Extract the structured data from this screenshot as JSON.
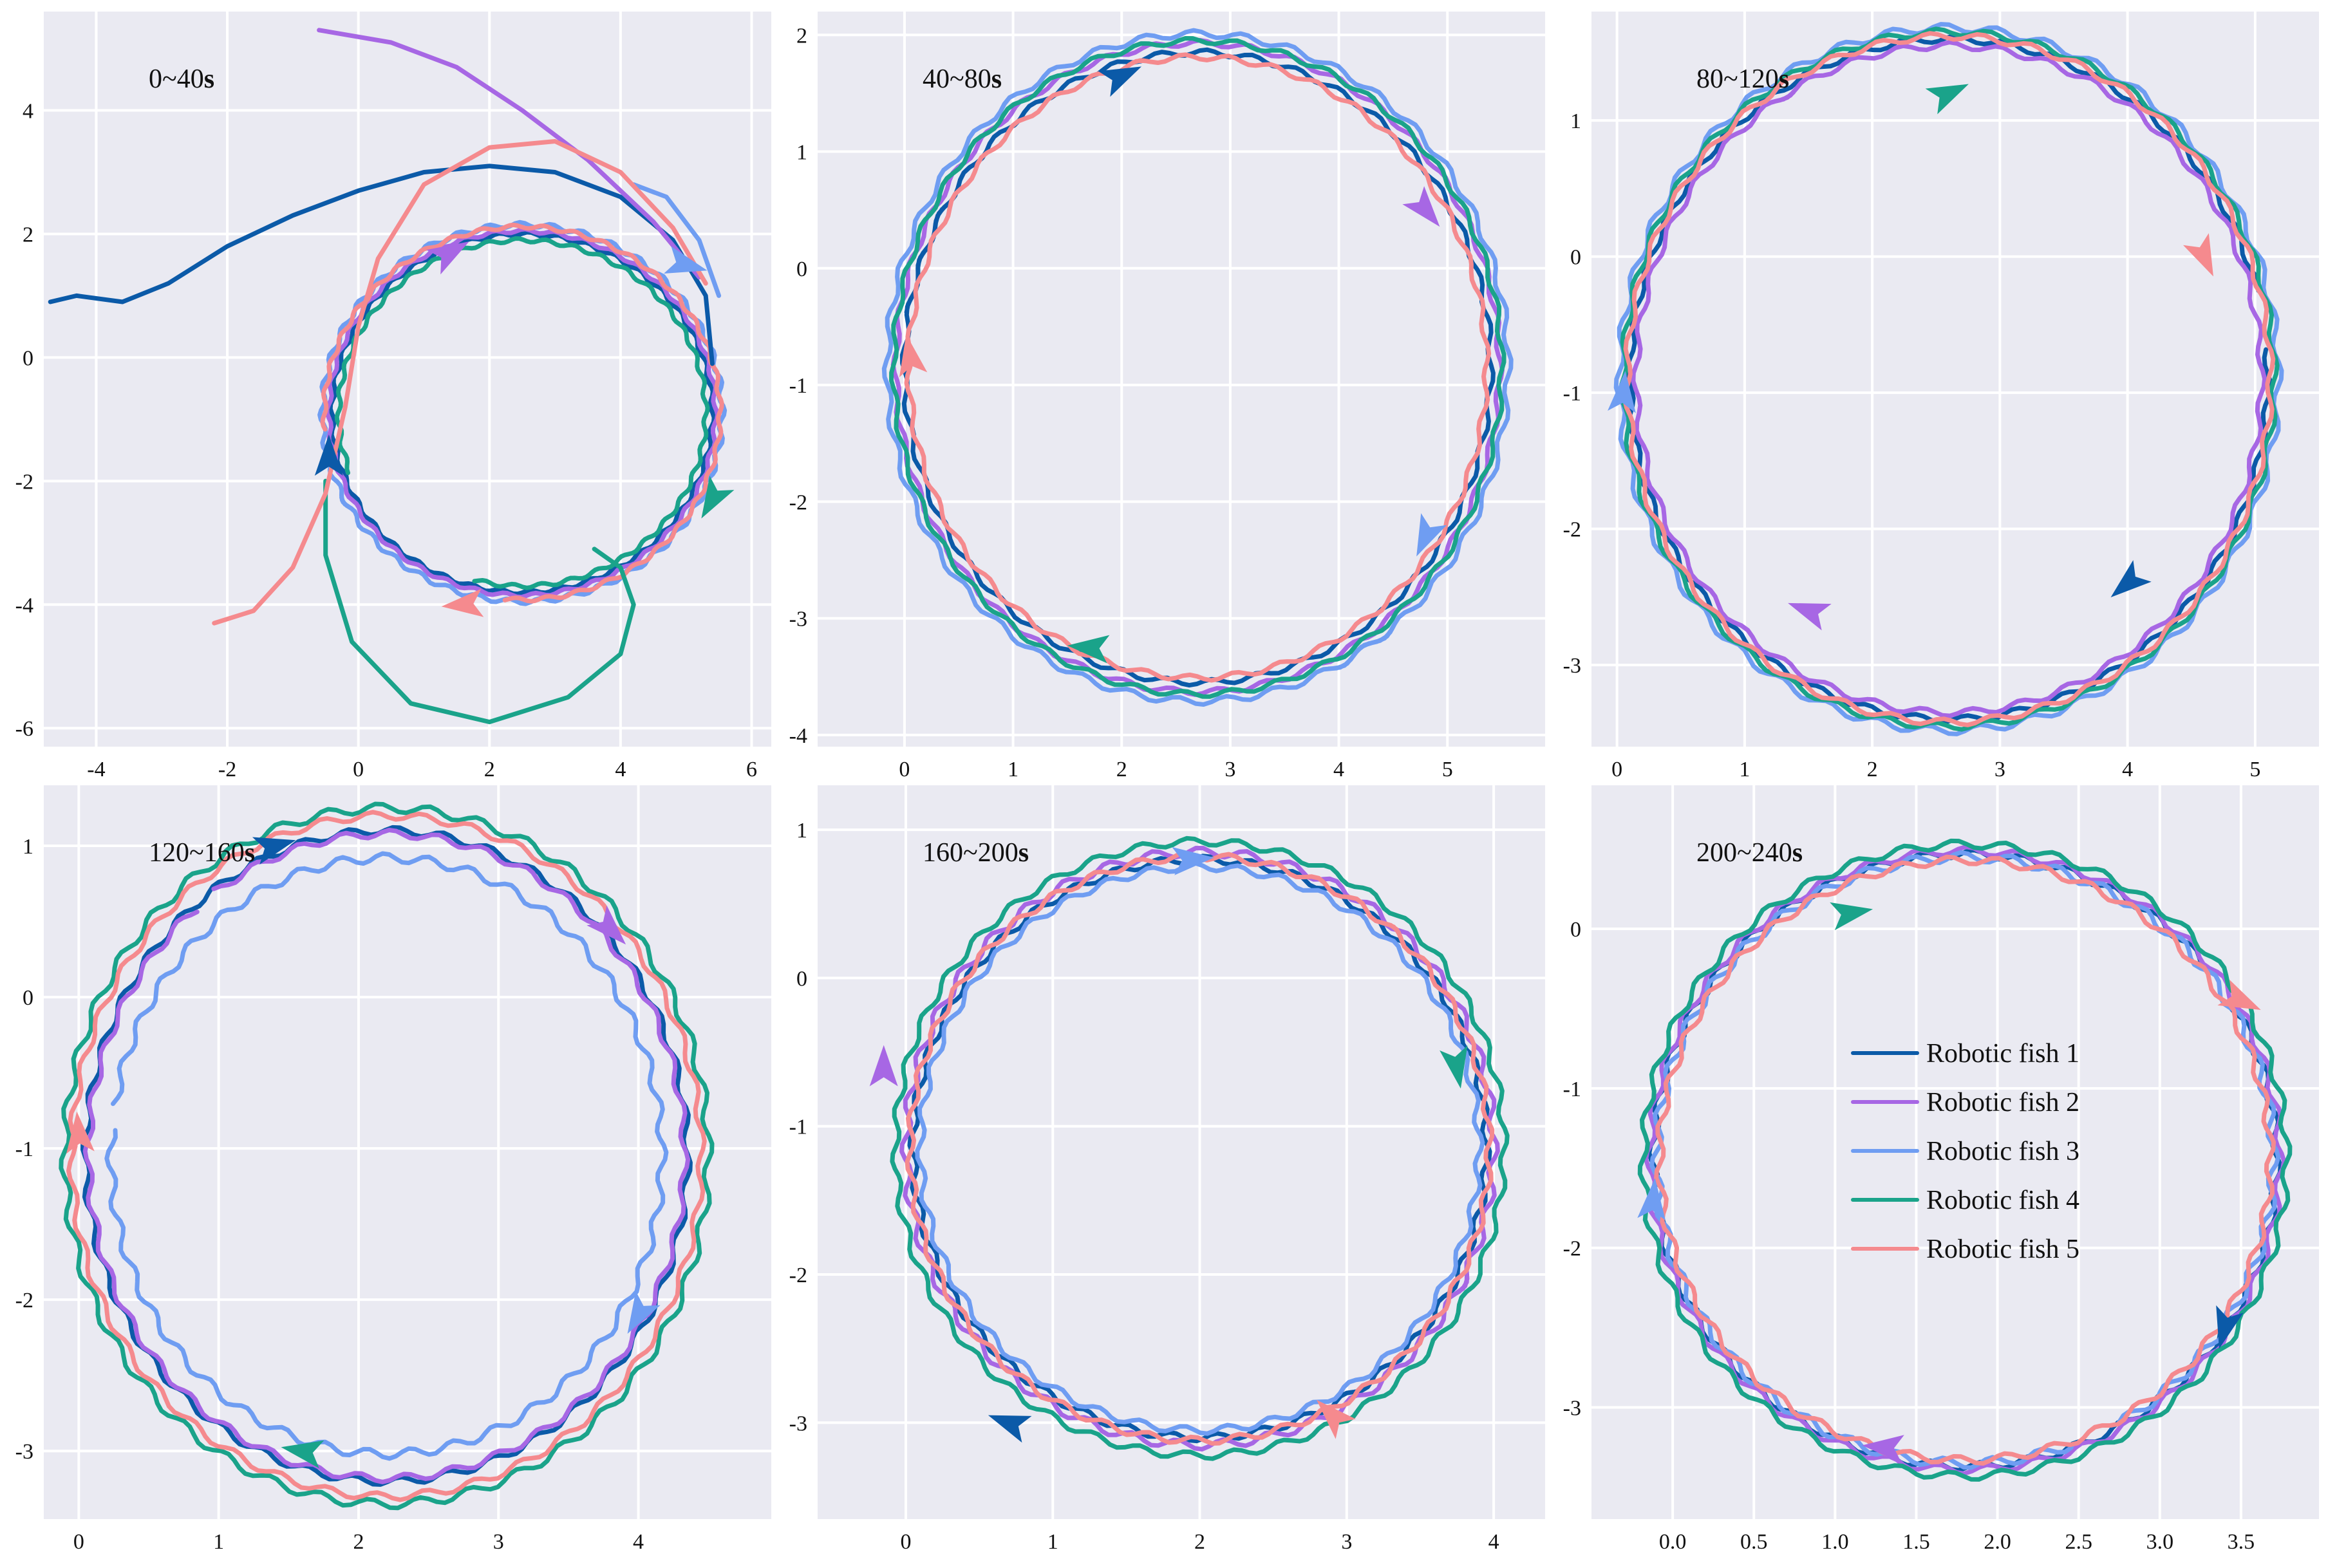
{
  "chart_data": {
    "type": "line",
    "figure": "Trajectories of five robotic fish over six time windows",
    "colors": {
      "plot_bg": "#eaeaf2",
      "grid": "#ffffff"
    },
    "series": [
      {
        "name": "Robotic fish 1",
        "color": "#0b5aa8"
      },
      {
        "name": "Robotic fish 2",
        "color": "#a767e4"
      },
      {
        "name": "Robotic fish 3",
        "color": "#6f9df2"
      },
      {
        "name": "Robotic fish 4",
        "color": "#1aa38a"
      },
      {
        "name": "Robotic fish 5",
        "color": "#f58a8e"
      }
    ],
    "legend": {
      "placement": "inside-right of panel 6",
      "labels": [
        "Robotic fish 1",
        "Robotic fish 2",
        "Robotic fish 3",
        "Robotic fish 4",
        "Robotic fish 5"
      ]
    },
    "panels": [
      {
        "title_prefix": "0~40",
        "title_unit": "s",
        "xlim": [
          -4.8,
          6.3
        ],
        "ylim": [
          -6.3,
          5.6
        ],
        "xticks": [
          -4,
          -2,
          0,
          2,
          4,
          6
        ],
        "xtick_labels": [
          "-4",
          "-2",
          "0",
          "2",
          "4",
          "6"
        ],
        "yticks": [
          -6,
          -4,
          -2,
          0,
          2,
          4
        ],
        "ytick_labels": [
          "-6",
          "-4",
          "-2",
          "0",
          "2",
          "4"
        ],
        "center": [
          2.5,
          -0.9
        ],
        "radius": 2.9,
        "dir": -1,
        "rings": [
          {
            "dr": 0.0,
            "t0": 180,
            "t1": 540,
            "wob": 0.03,
            "ph": 0.2
          },
          {
            "dr": 0.05,
            "t0": 130,
            "t1": 500,
            "wob": 0.03,
            "ph": 1.1
          },
          {
            "dr": 0.15,
            "t0": 150,
            "t1": 515,
            "wob": 0.04,
            "ph": 2.0
          },
          {
            "dr": -0.1,
            "t0": 160,
            "t1": 465,
            "wob": 0.03,
            "ph": 2.7
          },
          {
            "dr": 0.12,
            "t0": 175,
            "t1": 455,
            "wob": 0.03,
            "ph": 3.5
          }
        ],
        "paths": [
          [
            [
              -4.7,
              0.9
            ],
            [
              -4.3,
              1.0
            ],
            [
              -3.6,
              0.9
            ],
            [
              -2.9,
              1.2
            ],
            [
              -2.0,
              1.8
            ],
            [
              -1.0,
              2.3
            ],
            [
              0.0,
              2.7
            ],
            [
              1.0,
              3.0
            ],
            [
              2.0,
              3.1
            ],
            [
              3.0,
              3.0
            ],
            [
              4.0,
              2.6
            ],
            [
              4.8,
              1.9
            ],
            [
              5.3,
              1.0
            ],
            [
              5.4,
              -0.1
            ]
          ],
          [
            [
              -0.6,
              5.3
            ],
            [
              0.5,
              5.1
            ],
            [
              1.5,
              4.7
            ],
            [
              2.5,
              4.0
            ],
            [
              3.5,
              3.2
            ],
            [
              4.5,
              2.2
            ],
            [
              5.2,
              1.3
            ]
          ],
          [
            [
              4.2,
              2.8
            ],
            [
              4.7,
              2.6
            ],
            [
              5.2,
              1.9
            ],
            [
              5.5,
              1.0
            ]
          ],
          [
            [
              3.6,
              -3.1
            ],
            [
              4.0,
              -3.4
            ],
            [
              4.2,
              -4.0
            ],
            [
              4.0,
              -4.8
            ],
            [
              3.2,
              -5.5
            ],
            [
              2.0,
              -5.9
            ],
            [
              0.8,
              -5.6
            ],
            [
              -0.1,
              -4.6
            ],
            [
              -0.5,
              -3.2
            ],
            [
              -0.5,
              -2.0
            ]
          ],
          [
            [
              -2.2,
              -4.3
            ],
            [
              -1.6,
              -4.1
            ],
            [
              -1.0,
              -3.4
            ],
            [
              -0.5,
              -2.2
            ],
            [
              -0.2,
              -0.8
            ],
            [
              0.0,
              0.5
            ],
            [
              0.3,
              1.6
            ],
            [
              1.0,
              2.8
            ],
            [
              2.0,
              3.4
            ],
            [
              3.0,
              3.5
            ],
            [
              4.0,
              3.0
            ],
            [
              4.8,
              2.1
            ],
            [
              5.3,
              1.2
            ]
          ]
        ],
        "arrows": [
          {
            "fish": 1,
            "x": -0.45,
            "y": -1.6,
            "deg": 90
          },
          {
            "fish": 2,
            "x": 1.4,
            "y": 1.7,
            "deg": 30
          },
          {
            "fish": 3,
            "x": 5.0,
            "y": 1.5,
            "deg": -15
          },
          {
            "fish": 4,
            "x": 5.4,
            "y": -2.3,
            "deg": -120
          },
          {
            "fish": 5,
            "x": 1.6,
            "y": -4.0,
            "deg": 185
          }
        ]
      },
      {
        "title_prefix": "40~80",
        "title_unit": "s",
        "xlim": [
          -0.8,
          5.9
        ],
        "ylim": [
          -4.1,
          2.2
        ],
        "xticks": [
          0,
          1,
          2,
          3,
          4,
          5
        ],
        "xtick_labels": [
          "0",
          "1",
          "2",
          "3",
          "4",
          "5"
        ],
        "yticks": [
          -4,
          -3,
          -2,
          -1,
          0,
          1,
          2
        ],
        "ytick_labels": [
          "-4",
          "-3",
          "-2",
          "-1",
          "0",
          "1",
          "2"
        ],
        "center": [
          2.7,
          -0.85
        ],
        "radius": 2.7,
        "dir": -1,
        "rings": [
          {
            "dr": 0.0,
            "t0": 190,
            "t1": 570,
            "wob": 0.025,
            "ph": 0.4
          },
          {
            "dr": 0.08,
            "t0": 60,
            "t1": 420,
            "wob": 0.025,
            "ph": 1.2
          },
          {
            "dr": 0.16,
            "t0": 50,
            "t1": 425,
            "wob": 0.03,
            "ph": 2.1
          },
          {
            "dr": 0.1,
            "t0": 330,
            "t1": 690,
            "wob": 0.025,
            "ph": 2.8
          },
          {
            "dr": -0.04,
            "t0": 255,
            "t1": 620,
            "wob": 0.025,
            "ph": 3.6
          }
        ],
        "paths": [],
        "arrows": [
          {
            "fish": 1,
            "x": 2.0,
            "y": 1.65,
            "deg": 25
          },
          {
            "fish": 2,
            "x": 4.8,
            "y": 0.5,
            "deg": -50
          },
          {
            "fish": 3,
            "x": 4.8,
            "y": -2.3,
            "deg": -115
          },
          {
            "fish": 4,
            "x": 1.7,
            "y": -3.25,
            "deg": 175
          },
          {
            "fish": 5,
            "x": 0.05,
            "y": -0.75,
            "deg": 100
          }
        ]
      },
      {
        "title_prefix": "80~120",
        "title_unit": "s",
        "xlim": [
          -0.2,
          5.5
        ],
        "ylim": [
          -3.6,
          1.8
        ],
        "xticks": [
          0,
          1,
          2,
          3,
          4,
          5
        ],
        "xtick_labels": [
          "0",
          "1",
          "2",
          "3",
          "4",
          "5"
        ],
        "yticks": [
          -3,
          -2,
          -1,
          0,
          1
        ],
        "ytick_labels": [
          "-3",
          "-2",
          "-1",
          "0",
          "1"
        ],
        "center": [
          2.6,
          -0.9
        ],
        "radius": 2.5,
        "dir": -1,
        "rings": [
          {
            "dr": 0.0,
            "t0": 355,
            "t1": 705,
            "wob": 0.025,
            "ph": 0.6
          },
          {
            "dr": -0.05,
            "t0": 235,
            "t1": 600,
            "wob": 0.025,
            "ph": 1.4
          },
          {
            "dr": 0.08,
            "t0": 180,
            "t1": 540,
            "wob": 0.03,
            "ph": 2.2
          },
          {
            "dr": 0.05,
            "t0": 85,
            "t1": 445,
            "wob": 0.025,
            "ph": 3.1
          },
          {
            "dr": 0.02,
            "t0": 5,
            "t1": 365,
            "wob": 0.025,
            "ph": 3.9
          }
        ],
        "paths": [],
        "arrows": [
          {
            "fish": 1,
            "x": 4.0,
            "y": -2.4,
            "deg": -140
          },
          {
            "fish": 2,
            "x": 1.5,
            "y": -2.6,
            "deg": 160
          },
          {
            "fish": 3,
            "x": 0.05,
            "y": -1.0,
            "deg": 85
          },
          {
            "fish": 4,
            "x": 2.6,
            "y": 1.2,
            "deg": 25
          },
          {
            "fish": 5,
            "x": 4.6,
            "y": 0.0,
            "deg": -65
          }
        ]
      },
      {
        "title_prefix": "120~160",
        "title_unit": "s",
        "xlim": [
          -0.25,
          4.95
        ],
        "ylim": [
          -3.45,
          1.4
        ],
        "xticks": [
          0,
          1,
          2,
          3,
          4
        ],
        "xtick_labels": [
          "0",
          "1",
          "2",
          "3",
          "4"
        ],
        "yticks": [
          -3,
          -2,
          -1,
          0,
          1
        ],
        "ytick_labels": [
          "-3",
          "-2",
          "-1",
          "0",
          "1"
        ],
        "center": [
          2.2,
          -1.05
        ],
        "radius": 2.15,
        "dir": -1,
        "rings": [
          {
            "dr": 0.0,
            "t0": 105,
            "t1": 465,
            "wob": 0.025,
            "ph": 0.3
          },
          {
            "dr": -0.02,
            "t0": 235,
            "t1": 590,
            "wob": 0.025,
            "ph": 1.0
          },
          {
            "dr": -0.18,
            "t0": 190,
            "t1": 545,
            "wob": 0.03,
            "ph": 1.9
          },
          {
            "dr": 0.15,
            "t0": 70,
            "t1": 430,
            "wob": 0.03,
            "ph": 2.6
          },
          {
            "dr": 0.1,
            "t0": 10,
            "t1": 370,
            "wob": 0.025,
            "ph": 3.4
          }
        ],
        "paths": [],
        "arrows": [
          {
            "fish": 1,
            "x": 1.4,
            "y": 1.0,
            "deg": 15
          },
          {
            "fish": 2,
            "x": 3.8,
            "y": 0.45,
            "deg": -45
          },
          {
            "fish": 3,
            "x": 4.0,
            "y": -2.1,
            "deg": -120
          },
          {
            "fish": 4,
            "x": 1.6,
            "y": -3.0,
            "deg": 170
          },
          {
            "fish": 5,
            "x": 0.0,
            "y": -0.9,
            "deg": 95
          }
        ]
      },
      {
        "title_prefix": "160~200",
        "title_unit": "s",
        "xlim": [
          -0.6,
          4.35
        ],
        "ylim": [
          -3.65,
          1.3
        ],
        "xticks": [
          0,
          1,
          2,
          3,
          4
        ],
        "xtick_labels": [
          "0",
          "1",
          "2",
          "3",
          "4"
        ],
        "yticks": [
          -3,
          -2,
          -1,
          0,
          1
        ],
        "ytick_labels": [
          "-3",
          "-2",
          "-1",
          "0",
          "1"
        ],
        "center": [
          2.0,
          -1.15
        ],
        "radius": 1.95,
        "dir": -1,
        "rings": [
          {
            "dr": 0.0,
            "t0": 110,
            "t1": 470,
            "wob": 0.025,
            "ph": 0.8
          },
          {
            "dr": 0.05,
            "t0": 25,
            "t1": 390,
            "wob": 0.03,
            "ph": 1.6
          },
          {
            "dr": -0.05,
            "t0": 60,
            "t1": 430,
            "wob": 0.025,
            "ph": 2.4
          },
          {
            "dr": 0.12,
            "t0": 305,
            "t1": 665,
            "wob": 0.025,
            "ph": 3.0
          },
          {
            "dr": 0.02,
            "t0": 310,
            "t1": 675,
            "wob": 0.025,
            "ph": 3.8
          }
        ],
        "paths": [],
        "arrows": [
          {
            "fish": 1,
            "x": 0.7,
            "y": -3.0,
            "deg": 160
          },
          {
            "fish": 2,
            "x": -0.15,
            "y": -0.6,
            "deg": 90
          },
          {
            "fish": 3,
            "x": 1.95,
            "y": 0.8,
            "deg": 5
          },
          {
            "fish": 4,
            "x": 3.75,
            "y": -0.6,
            "deg": -80
          },
          {
            "fish": 5,
            "x": 2.9,
            "y": -2.95,
            "deg": 135
          }
        ]
      },
      {
        "title_prefix": "200~240",
        "title_unit": "s",
        "xlim": [
          -0.5,
          3.98
        ],
        "ylim": [
          -3.7,
          0.9
        ],
        "xticks": [
          0.0,
          0.5,
          1.0,
          1.5,
          2.0,
          2.5,
          3.0,
          3.5
        ],
        "xtick_labels": [
          "0.0",
          "0.5",
          "1.0",
          "1.5",
          "2.0",
          "2.5",
          "3.0",
          "3.5"
        ],
        "yticks": [
          -3,
          -2,
          -1,
          0
        ],
        "ytick_labels": [
          "-3",
          "-2",
          "-1",
          "0"
        ],
        "center": [
          1.8,
          -1.45
        ],
        "radius": 1.92,
        "dir": -1,
        "rings": [
          {
            "dr": 0.0,
            "t0": 330,
            "t1": 680,
            "wob": 0.025,
            "ph": 0.5
          },
          {
            "dr": 0.02,
            "t0": 230,
            "t1": 590,
            "wob": 0.025,
            "ph": 1.3
          },
          {
            "dr": -0.02,
            "t0": 70,
            "t1": 420,
            "wob": 0.03,
            "ph": 2.0
          },
          {
            "dr": 0.06,
            "t0": 10,
            "t1": 370,
            "wob": 0.025,
            "ph": 2.9
          },
          {
            "dr": -0.04,
            "t0": 250,
            "t1": 610,
            "wob": 0.025,
            "ph": 3.7
          }
        ],
        "paths": [],
        "arrows": [
          {
            "fish": 1,
            "x": 3.4,
            "y": -2.5,
            "deg": -105
          },
          {
            "fish": 2,
            "x": 1.3,
            "y": -3.25,
            "deg": 175
          },
          {
            "fish": 3,
            "x": -0.12,
            "y": -1.7,
            "deg": 85
          },
          {
            "fish": 4,
            "x": 1.1,
            "y": 0.1,
            "deg": 10
          },
          {
            "fish": 5,
            "x": 3.5,
            "y": -0.45,
            "deg": -25
          }
        ]
      }
    ]
  }
}
